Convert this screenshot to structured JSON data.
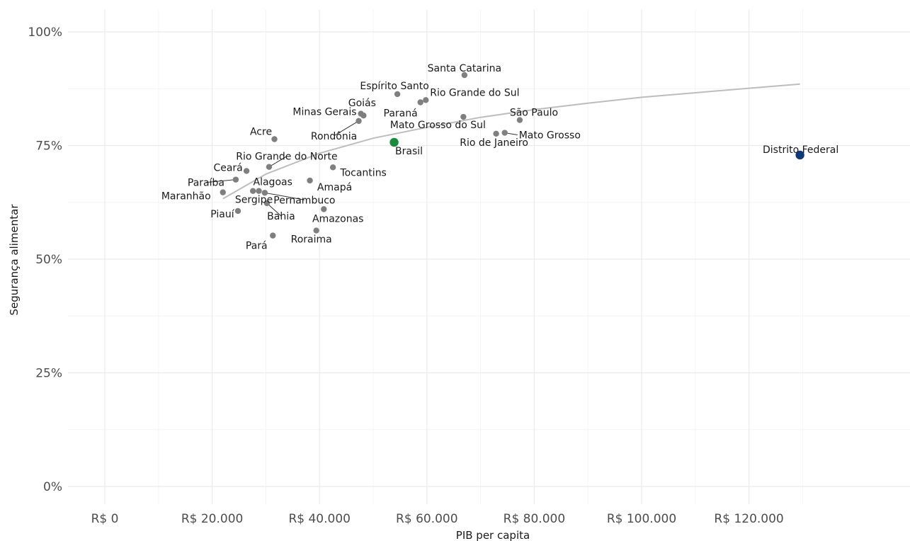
{
  "chart_data": {
    "type": "scatter",
    "title": "",
    "xlabel": "PIB per capita",
    "ylabel": "Segurança alimentar",
    "xlim": [
      0,
      140000
    ],
    "ylim": [
      0,
      1
    ],
    "x_ticks": [
      {
        "value": 0,
        "label": "R$ 0"
      },
      {
        "value": 20000,
        "label": "R$ 20.000"
      },
      {
        "value": 40000,
        "label": "R$ 40.000"
      },
      {
        "value": 60000,
        "label": "R$ 60.000"
      },
      {
        "value": 80000,
        "label": "R$ 80.000"
      },
      {
        "value": 100000,
        "label": "R$ 100.000"
      },
      {
        "value": 120000,
        "label": "R$ 120.000"
      }
    ],
    "y_ticks": [
      {
        "value": 0,
        "label": "0%"
      },
      {
        "value": 0.25,
        "label": "25%"
      },
      {
        "value": 0.5,
        "label": "50%"
      },
      {
        "value": 0.75,
        "label": "75%"
      },
      {
        "value": 1,
        "label": "100%"
      }
    ],
    "grid": true,
    "legend": "none",
    "colors": {
      "states": "#7f7f7f",
      "brasil": "#1a8a3c",
      "distrito_federal": "#0d3b7a",
      "trend": "#bdbdbd"
    },
    "trend_line": {
      "type": "log-fit",
      "x": [
        22000,
        30000,
        40000,
        50000,
        60000,
        70000,
        80000,
        90000,
        100000,
        110000,
        120000,
        129500
      ],
      "y": [
        0.633,
        0.687,
        0.733,
        0.766,
        0.79,
        0.812,
        0.829,
        0.843,
        0.856,
        0.866,
        0.876,
        0.885
      ]
    },
    "points": [
      {
        "name": "Santa Catarina",
        "x": 67000,
        "y": 0.905,
        "group": "state"
      },
      {
        "name": "Espírito Santo",
        "x": 54500,
        "y": 0.863,
        "group": "state"
      },
      {
        "name": "Rio Grande do Sul",
        "x": 59800,
        "y": 0.85,
        "group": "state"
      },
      {
        "name": "Paraná",
        "x": 58800,
        "y": 0.845,
        "group": "state"
      },
      {
        "name": "Goiás",
        "x": 48200,
        "y": 0.816,
        "group": "state"
      },
      {
        "name": "Minas Gerais",
        "x": 47700,
        "y": 0.82,
        "group": "state"
      },
      {
        "name": "Rondônia",
        "x": 47300,
        "y": 0.804,
        "group": "state"
      },
      {
        "name": "Mato Grosso do Sul",
        "x": 66800,
        "y": 0.813,
        "group": "state"
      },
      {
        "name": "São Paulo",
        "x": 77300,
        "y": 0.806,
        "group": "state"
      },
      {
        "name": "Mato Grosso",
        "x": 74500,
        "y": 0.778,
        "group": "state"
      },
      {
        "name": "Rio de Janeiro",
        "x": 72900,
        "y": 0.776,
        "group": "state"
      },
      {
        "name": "Acre",
        "x": 31600,
        "y": 0.764,
        "group": "state"
      },
      {
        "name": "Brasil",
        "x": 53900,
        "y": 0.757,
        "group": "brasil"
      },
      {
        "name": "Distrito Federal",
        "x": 129500,
        "y": 0.729,
        "group": "df"
      },
      {
        "name": "Rio Grande do Norte",
        "x": 30600,
        "y": 0.703,
        "group": "state"
      },
      {
        "name": "Tocantins",
        "x": 42500,
        "y": 0.702,
        "group": "state"
      },
      {
        "name": "Ceará",
        "x": 26400,
        "y": 0.694,
        "group": "state"
      },
      {
        "name": "Amapá",
        "x": 38200,
        "y": 0.673,
        "group": "state"
      },
      {
        "name": "Paraíba",
        "x": 24400,
        "y": 0.675,
        "group": "state"
      },
      {
        "name": "Alagoas",
        "x": 27600,
        "y": 0.65,
        "group": "state"
      },
      {
        "name": "Maranhão",
        "x": 22000,
        "y": 0.647,
        "group": "state"
      },
      {
        "name": "Sergipe",
        "x": 28700,
        "y": 0.65,
        "group": "state"
      },
      {
        "name": "Pernambuco",
        "x": 29800,
        "y": 0.646,
        "group": "state"
      },
      {
        "name": "Bahia",
        "x": 30200,
        "y": 0.623,
        "group": "state"
      },
      {
        "name": "Piauí",
        "x": 24800,
        "y": 0.606,
        "group": "state"
      },
      {
        "name": "Amazonas",
        "x": 40800,
        "y": 0.61,
        "group": "state"
      },
      {
        "name": "Roraima",
        "x": 39400,
        "y": 0.563,
        "group": "state"
      },
      {
        "name": "Pará",
        "x": 31300,
        "y": 0.552,
        "group": "state"
      }
    ]
  }
}
